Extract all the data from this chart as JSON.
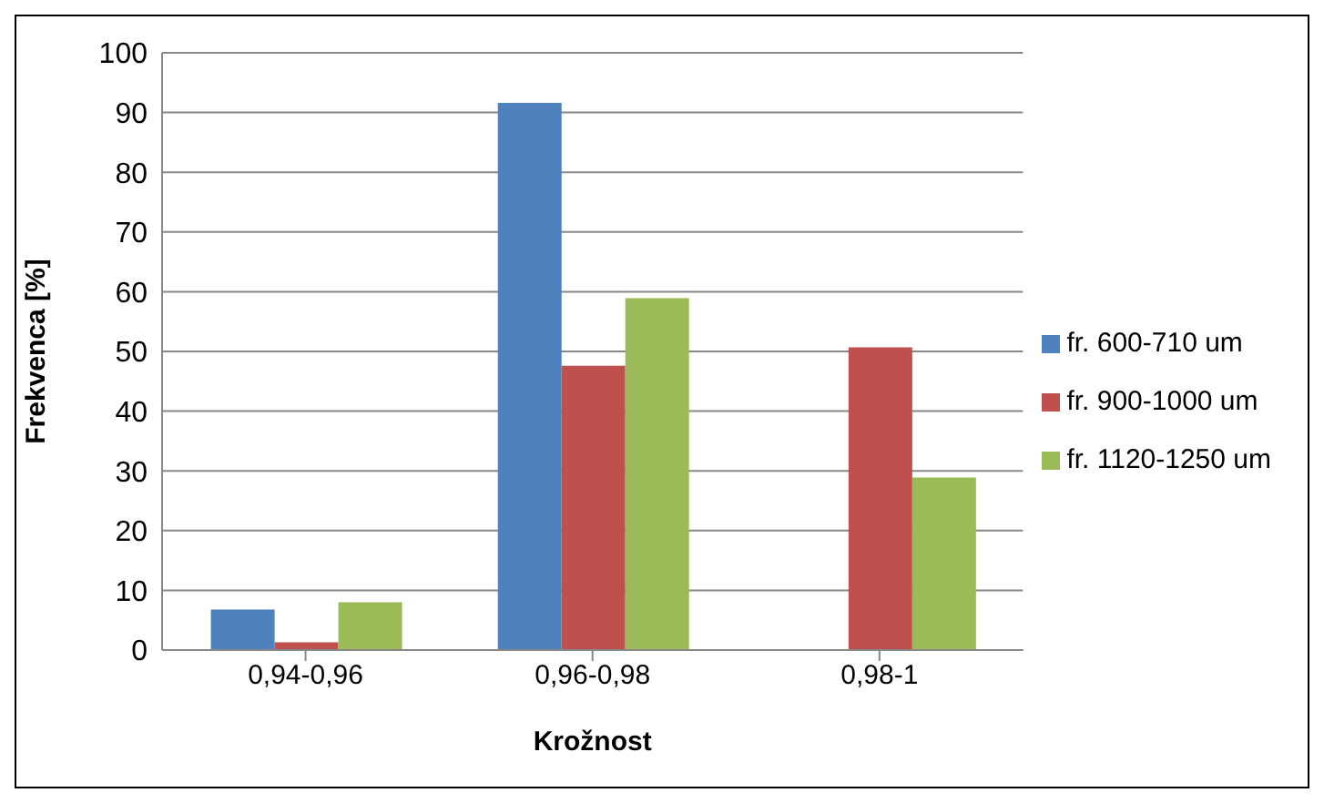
{
  "chart_data": {
    "type": "bar",
    "xlabel": "Krožnost",
    "ylabel": "Frekvenca [%]",
    "categories": [
      "0,94-0,96",
      "0,96-0,98",
      "0,98-1"
    ],
    "series": [
      {
        "name": "fr. 600-710 um",
        "color": "#4f81bd",
        "values": [
          6.8,
          91.6,
          0
        ]
      },
      {
        "name": "fr. 900-1000 um",
        "color": "#c0504d",
        "values": [
          1.3,
          47.6,
          50.7
        ]
      },
      {
        "name": "fr. 1120-1250 um",
        "color": "#9bbb59",
        "values": [
          8,
          58.9,
          28.9
        ]
      }
    ],
    "ylim": [
      0,
      100
    ],
    "yticks": [
      0,
      10,
      20,
      30,
      40,
      50,
      60,
      70,
      80,
      90,
      100
    ],
    "grid": "y",
    "legend": "right"
  }
}
